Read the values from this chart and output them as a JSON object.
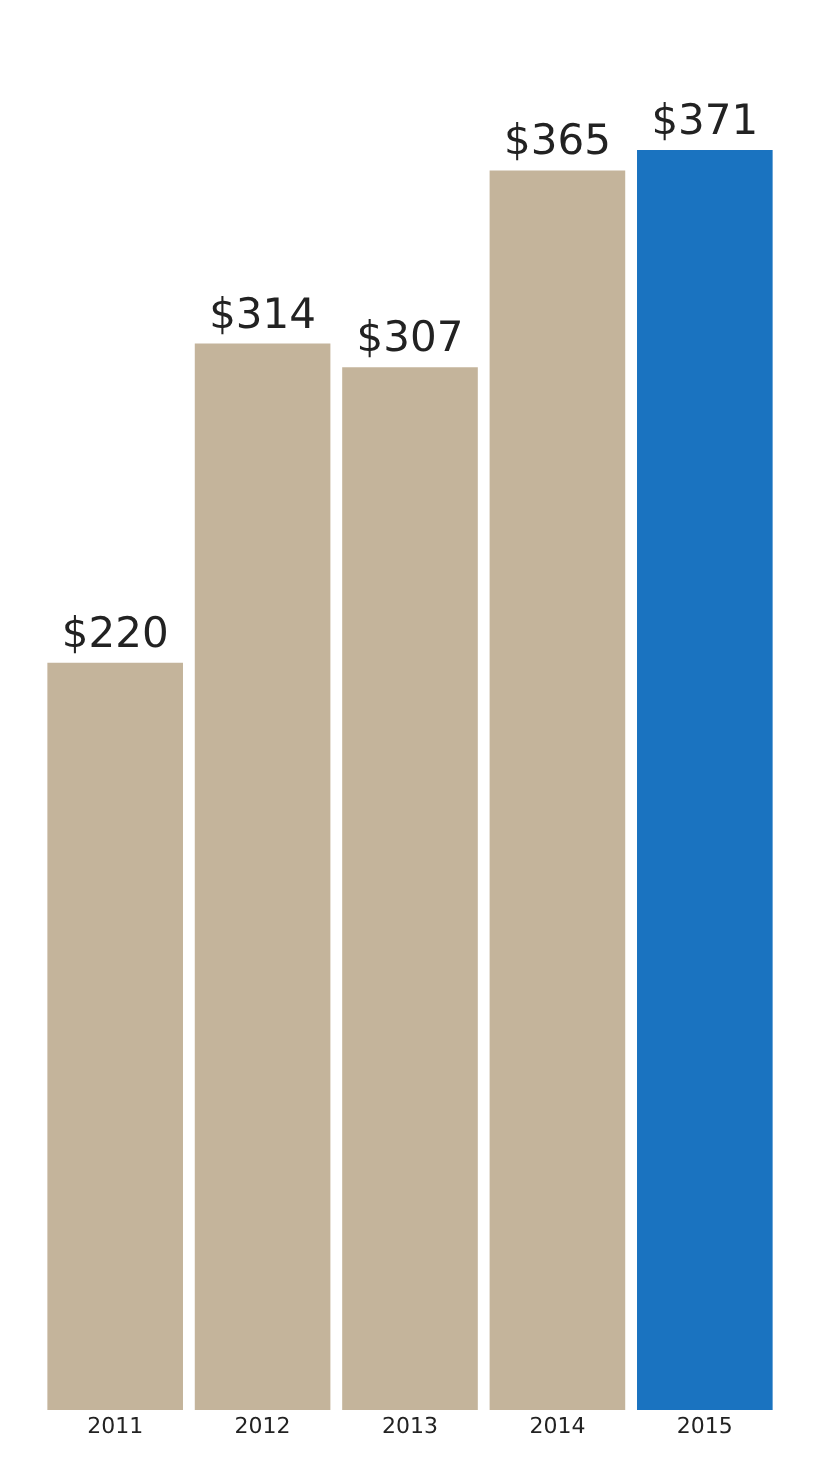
{
  "chart_data": {
    "type": "bar",
    "categories": [
      "2011",
      "2012",
      "2013",
      "2014",
      "2015"
    ],
    "values": [
      220,
      314,
      307,
      365,
      371
    ],
    "colors": [
      "#c4b49b",
      "#c4b49b",
      "#c4b49b",
      "#c4b49b",
      "#1a73c0"
    ],
    "value_labels": [
      "$220",
      "$314",
      "$307",
      "$365",
      "$371"
    ]
  }
}
